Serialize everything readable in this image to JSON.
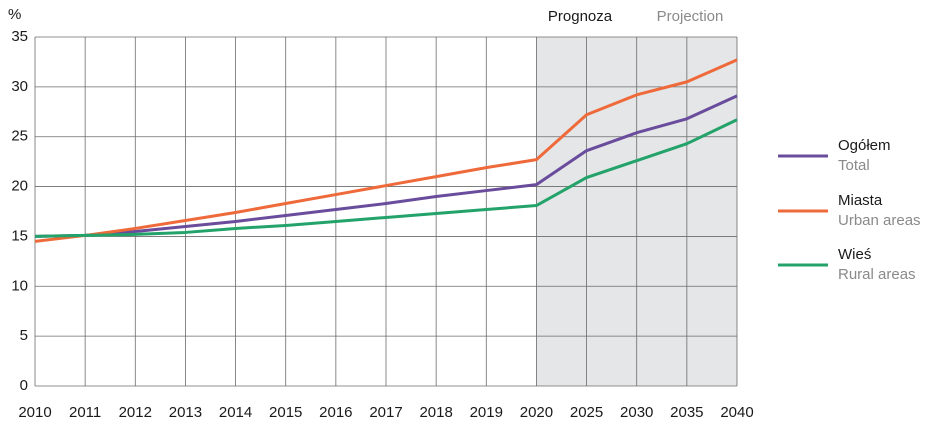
{
  "chart_data": {
    "type": "line",
    "y_label": "%",
    "categories": [
      "2010",
      "2011",
      "2012",
      "2013",
      "2014",
      "2015",
      "2016",
      "2017",
      "2018",
      "2019",
      "2020",
      "2025",
      "2030",
      "2035",
      "2040"
    ],
    "series": [
      {
        "name": "Ogółem",
        "name_en": "Total",
        "color": "#6a4c9c",
        "values": [
          15.0,
          15.1,
          15.5,
          16.0,
          16.5,
          17.1,
          17.7,
          18.3,
          19.0,
          19.6,
          20.2,
          23.6,
          25.4,
          26.8,
          29.1
        ]
      },
      {
        "name": "Miasta",
        "name_en": "Urban areas",
        "color": "#ef6a3a",
        "values": [
          14.5,
          15.1,
          15.8,
          16.6,
          17.4,
          18.3,
          19.2,
          20.1,
          21.0,
          21.9,
          22.7,
          27.2,
          29.2,
          30.5,
          32.7
        ]
      },
      {
        "name": "Wieś",
        "name_en": "Rural areas",
        "color": "#23a36a",
        "values": [
          15.0,
          15.1,
          15.2,
          15.4,
          15.8,
          16.1,
          16.5,
          16.9,
          17.3,
          17.7,
          18.1,
          20.9,
          22.6,
          24.3,
          26.7
        ]
      }
    ],
    "projection": {
      "from": "2020",
      "to": "2040",
      "label": "Prognoza",
      "label_en": "Projection",
      "color": "#e5e6e8"
    },
    "ylim": [
      0,
      35
    ],
    "yticks": [
      0,
      5,
      10,
      15,
      20,
      25,
      30,
      35
    ],
    "grid": true,
    "legend": "right"
  }
}
